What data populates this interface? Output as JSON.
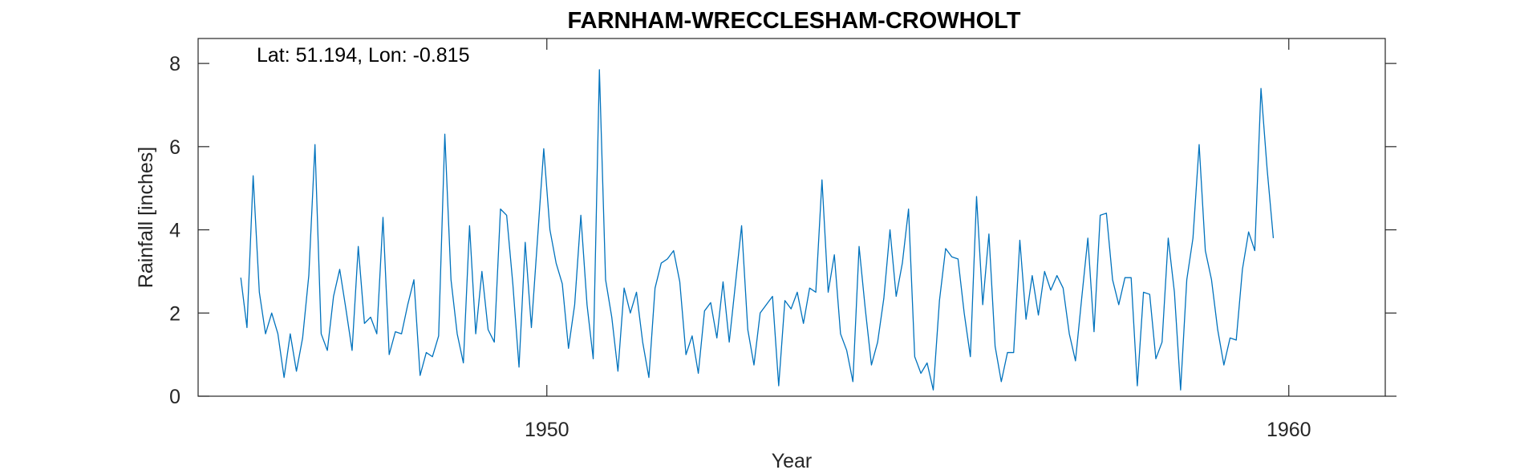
{
  "chart_data": {
    "type": "line",
    "title": "FARNHAM-WRECCLESHAM-CROWHOLT",
    "xlabel": "Year",
    "ylabel": "Rainfall [inches]",
    "annotation": "Lat: 51.194, Lon: -0.815",
    "xlim": [
      1945.3,
      1961.3
    ],
    "ylim": [
      0,
      8.6
    ],
    "xticks": [
      1950,
      1960
    ],
    "yticks": [
      0,
      2,
      4,
      6,
      8
    ],
    "grid": false,
    "line_color": "#0072bd",
    "series": [
      {
        "x_start": 1945.875,
        "x_step": 0.083333,
        "values": [
          2.85,
          1.65,
          5.3,
          2.5,
          1.5,
          2.0,
          1.5,
          0.45,
          1.5,
          0.6,
          1.4,
          2.9,
          6.05,
          1.5,
          1.1,
          2.4,
          3.05,
          2.1,
          1.1,
          3.6,
          1.75,
          1.9,
          1.5,
          4.3,
          1.0,
          1.55,
          1.5,
          2.2,
          2.8,
          0.5,
          1.05,
          0.95,
          1.45,
          6.3,
          2.8,
          1.5,
          0.8,
          4.1,
          1.5,
          3.0,
          1.6,
          1.3,
          4.5,
          4.35,
          2.7,
          0.7,
          3.7,
          1.65,
          3.8,
          5.95,
          4.0,
          3.2,
          2.7,
          1.15,
          2.2,
          4.35,
          2.2,
          0.9,
          7.85,
          2.8,
          1.9,
          0.6,
          2.6,
          2.0,
          2.5,
          1.3,
          0.45,
          2.6,
          3.2,
          3.3,
          3.5,
          2.75,
          1.0,
          1.45,
          0.55,
          2.05,
          2.25,
          1.4,
          2.75,
          1.3,
          2.7,
          4.1,
          1.6,
          0.75,
          2.0,
          2.2,
          2.4,
          0.25,
          2.3,
          2.1,
          2.5,
          1.75,
          2.6,
          2.5,
          5.2,
          2.5,
          3.4,
          1.5,
          1.1,
          0.35,
          3.6,
          2.1,
          0.75,
          1.3,
          2.35,
          4.0,
          2.4,
          3.2,
          4.5,
          0.95,
          0.55,
          0.8,
          0.15,
          2.3,
          3.55,
          3.35,
          3.3,
          2.0,
          0.95,
          4.8,
          2.2,
          3.9,
          1.2,
          0.35,
          1.05,
          1.05,
          3.75,
          1.85,
          2.9,
          1.95,
          3.0,
          2.55,
          2.9,
          2.6,
          1.5,
          0.85,
          2.35,
          3.8,
          1.55,
          4.35,
          4.4,
          2.8,
          2.2,
          2.85,
          2.85,
          0.25,
          2.5,
          2.45,
          0.9,
          1.3,
          3.8,
          2.5,
          0.15,
          2.8,
          3.8,
          6.05,
          3.5,
          2.8,
          1.6,
          0.75,
          1.4,
          1.35,
          3.05,
          3.95,
          3.5,
          7.4,
          5.45,
          3.8
        ]
      }
    ]
  }
}
